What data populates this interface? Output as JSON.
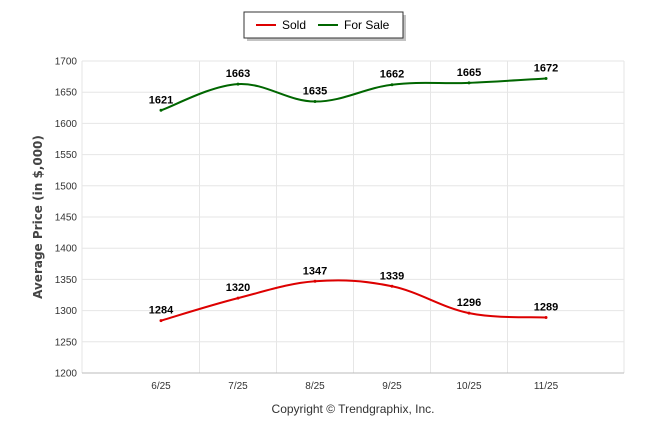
{
  "chart_data": {
    "type": "line",
    "categories": [
      "6/25",
      "7/25",
      "8/25",
      "9/25",
      "10/25",
      "11/25"
    ],
    "series": [
      {
        "name": "Sold",
        "color": "#dd0000",
        "values": [
          1284,
          1320,
          1347,
          1339,
          1296,
          1289
        ]
      },
      {
        "name": "For Sale",
        "color": "#006600",
        "values": [
          1621,
          1663,
          1635,
          1662,
          1665,
          1672
        ]
      }
    ],
    "ylabel": "Average Price (in $,000)",
    "ylim": [
      1200,
      1700
    ],
    "yticks": [
      1200,
      1250,
      1300,
      1350,
      1400,
      1450,
      1500,
      1550,
      1600,
      1650,
      1700
    ],
    "grid": true,
    "legend_position": "top-center",
    "footer": "Copyright © Trendgraphix, Inc."
  }
}
